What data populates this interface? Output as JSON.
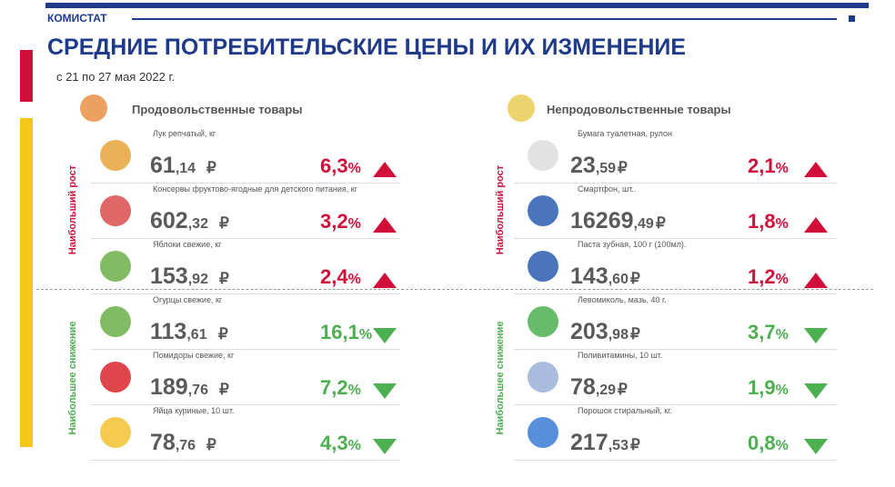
{
  "header": {
    "brand": "КОМИСТАТ",
    "title": "СРЕДНИЕ ПОТРЕБИТЕЛЬСКИЕ ЦЕНЫ  И ИХ ИЗМЕНЕНИЕ",
    "period": "с 21 по 27 мая 2022 г."
  },
  "labels": {
    "growth": "Наибольший рост",
    "decline": "Наибольшее снижение"
  },
  "currency": "₽",
  "panels": [
    {
      "title": "Продовольственные товары",
      "items": [
        {
          "name": "Лук репчатый,  кг",
          "price": "61,14",
          "change": "6,3%",
          "direction": "up"
        },
        {
          "name": "Консервы фруктово-ягодные  для детского питания, кг",
          "price": "602,32",
          "change": "3,2%",
          "direction": "up"
        },
        {
          "name": "Яблоки свежие, кг",
          "price": "153,92",
          "change": "2,4%",
          "direction": "up"
        },
        {
          "name": "Огурцы свежие, кг",
          "price": "113,61",
          "change": "16,1%",
          "direction": "down"
        },
        {
          "name": "Помидоры свежие, кг",
          "price": "189,76",
          "change": "7,2%",
          "direction": "down"
        },
        {
          "name": "Яйца куриные, 10 шт.",
          "price": "78,76",
          "change": "4,3%",
          "direction": "down"
        }
      ]
    },
    {
      "title": "Непродовольственные товары",
      "items": [
        {
          "name": "Бумага туалетная,  рулон",
          "price": "23,59",
          "change": "2,1%",
          "direction": "up"
        },
        {
          "name": "Смартфон,   шт..",
          "price": "16269,49",
          "change": "1,8%",
          "direction": "up"
        },
        {
          "name": "Паста зубная, 100 г (100мл).",
          "price": "143,60",
          "change": "1,2%",
          "direction": "up"
        },
        {
          "name": "Левомиколь, мазь, 40 г.",
          "price": "203,98",
          "change": "3,7%",
          "direction": "down"
        },
        {
          "name": "Поливитамины,   10 шт.",
          "price": "78,29",
          "change": "1,9%",
          "direction": "down"
        },
        {
          "name": "Порошок стиральный,  кг.",
          "price": "217,53",
          "change": "0,8%",
          "direction": "down"
        }
      ]
    }
  ]
}
